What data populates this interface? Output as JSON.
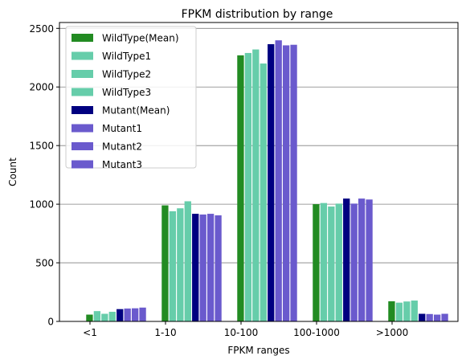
{
  "chart_data": {
    "type": "bar",
    "title": "FPKM distribution by range",
    "xlabel": "FPKM ranges",
    "ylabel": "Count",
    "ylim": [
      0,
      2550
    ],
    "yticks": [
      0,
      500,
      1000,
      1500,
      2000,
      2500
    ],
    "grid": "horizontal",
    "legend_position": "top-left",
    "categories": [
      "<1",
      "1-10",
      "10-100",
      "100-1000",
      ">1000"
    ],
    "series": [
      {
        "name": "WildType(Mean)",
        "color": "#228b22",
        "values": [
          58,
          990,
          2270,
          1000,
          172
        ]
      },
      {
        "name": "WildType1",
        "color": "#66cdaa",
        "values": [
          88,
          940,
          2290,
          1010,
          160
        ]
      },
      {
        "name": "WildType2",
        "color": "#66cdaa",
        "values": [
          65,
          965,
          2320,
          980,
          170
        ]
      },
      {
        "name": "WildType3",
        "color": "#66cdaa",
        "values": [
          82,
          1025,
          2200,
          1005,
          178
        ]
      },
      {
        "name": "Mutant(Mean)",
        "color": "#000080",
        "values": [
          105,
          918,
          2365,
          1048,
          65
        ]
      },
      {
        "name": "Mutant1",
        "color": "#6a5acd",
        "values": [
          110,
          912,
          2398,
          1005,
          63
        ]
      },
      {
        "name": "Mutant2",
        "color": "#6a5acd",
        "values": [
          112,
          918,
          2355,
          1048,
          58
        ]
      },
      {
        "name": "Mutant3",
        "color": "#6a5acd",
        "values": [
          118,
          905,
          2360,
          1040,
          65
        ]
      }
    ]
  }
}
